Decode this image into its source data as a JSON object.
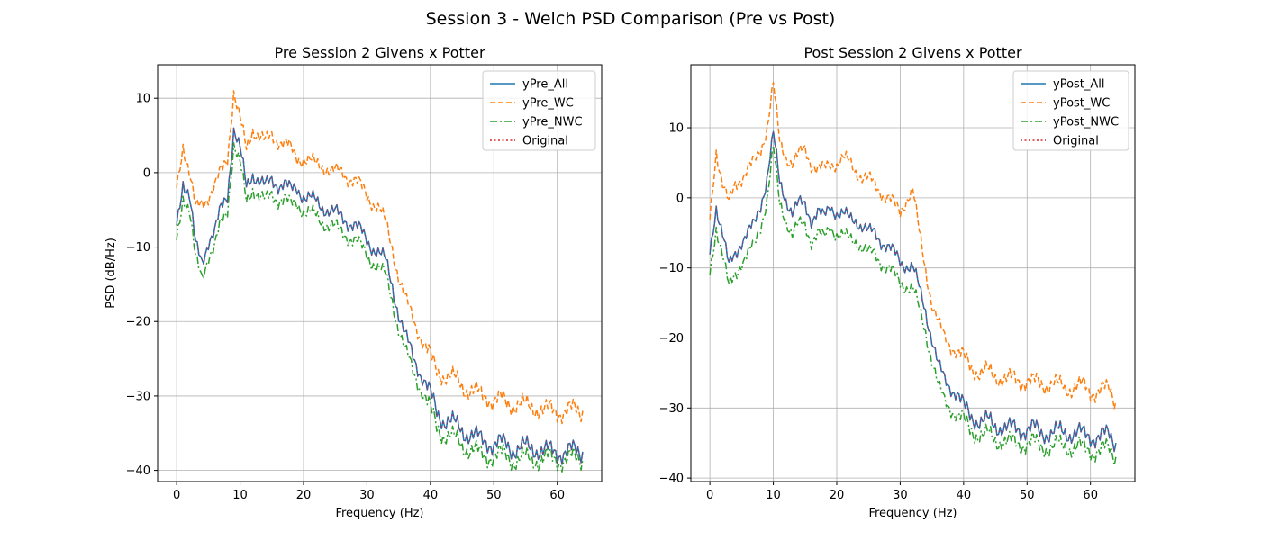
{
  "figure": {
    "suptitle": "Session 3 - Welch PSD Comparison (Pre vs Post)"
  },
  "colors": {
    "all": "#1f77b4",
    "wc": "#ff7f0e",
    "nwc": "#2ca02c",
    "original": "#d62728",
    "overlap": "#7b4a76",
    "grid": "#b0b0b0"
  },
  "chart_data": [
    {
      "type": "line",
      "title": "Pre Session 2 Givens x Potter",
      "xlabel": "Frequency (Hz)",
      "ylabel": "PSD (dB/Hz)",
      "xlim": [
        -3,
        67
      ],
      "ylim": [
        -41.5,
        14.5
      ],
      "xticks": [
        0,
        10,
        20,
        30,
        40,
        50,
        60
      ],
      "yticks": [
        -40,
        -30,
        -20,
        -10,
        0,
        10
      ],
      "grid": true,
      "legend_position": "top-right",
      "x": [
        0,
        1,
        2,
        3,
        4,
        5,
        6,
        7,
        8,
        9,
        10,
        11,
        12,
        13,
        14,
        15,
        16,
        17,
        18,
        19,
        20,
        21,
        22,
        23,
        24,
        25,
        26,
        27,
        28,
        29,
        30,
        31,
        32,
        33,
        34,
        35,
        36,
        37,
        38,
        39,
        40,
        41,
        42,
        43,
        44,
        45,
        46,
        47,
        48,
        49,
        50,
        51,
        52,
        53,
        54,
        55,
        56,
        57,
        58,
        59,
        60,
        61,
        62,
        63,
        64
      ],
      "series": [
        {
          "name": "yPre_All",
          "style": "solid",
          "values": [
            -7,
            -1,
            -3,
            -10,
            -12,
            -9,
            -8,
            -5,
            -3,
            6,
            3,
            -2,
            0,
            -1,
            -2,
            -1,
            -1.5,
            -1.5,
            -2.5,
            -2,
            -3,
            -3.5,
            -4,
            -4.5,
            -5,
            -5.5,
            -6,
            -6.5,
            -7,
            -8,
            -9,
            -10,
            -11,
            -12,
            -15,
            -19,
            -22,
            -24,
            -26,
            -28,
            -30,
            -32,
            -33,
            -33.5,
            -34,
            -34.5,
            -35,
            -35.5,
            -36,
            -36,
            -36.5,
            -36.5,
            -36.5,
            -37,
            -37,
            -37,
            -37,
            -37,
            -37.5,
            -37.5,
            -37.5,
            -37.5,
            -37.5,
            -37.5,
            -37.5
          ]
        },
        {
          "name": "yPre_WC",
          "style": "dashed",
          "values": [
            -2,
            4,
            0,
            -5,
            -4,
            -3,
            -2,
            0,
            2,
            11,
            7,
            3,
            6,
            5,
            4,
            5,
            4.5,
            4,
            3,
            2,
            2,
            1.5,
            1,
            1,
            0.5,
            0,
            0,
            -0.5,
            -1,
            -2,
            -3,
            -4,
            -5,
            -7,
            -10,
            -14,
            -17,
            -19,
            -21,
            -23,
            -25,
            -26.5,
            -27,
            -27.5,
            -28,
            -28.5,
            -29,
            -29.5,
            -30,
            -30,
            -30.5,
            -30.5,
            -31,
            -31,
            -31,
            -31.5,
            -31.5,
            -31.5,
            -32,
            -32,
            -32,
            -32,
            -32,
            -32,
            -32
          ]
        },
        {
          "name": "yPre_NWC",
          "style": "dashdot",
          "values": [
            -9,
            -3,
            -5,
            -12,
            -14,
            -11,
            -10,
            -7,
            -5,
            4,
            1,
            -4,
            -2,
            -3,
            -4,
            -3,
            -3.5,
            -3.5,
            -4.5,
            -4,
            -5,
            -5.5,
            -6,
            -6.5,
            -7,
            -7.5,
            -8,
            -8.5,
            -9,
            -10,
            -11,
            -12,
            -13,
            -14,
            -17,
            -21,
            -24,
            -26,
            -28,
            -30,
            -32,
            -34,
            -35,
            -35.5,
            -36,
            -36.5,
            -37,
            -37.5,
            -38,
            -38,
            -38,
            -38,
            -38,
            -38.5,
            -38.5,
            -38.5,
            -38.5,
            -38.5,
            -38.5,
            -38.5,
            -38.5,
            -38.5,
            -38.5,
            -38.5,
            -38.5
          ]
        },
        {
          "name": "Original",
          "style": "dotted",
          "values": [
            -7,
            -1,
            -3,
            -10,
            -12,
            -9,
            -8,
            -5,
            -3,
            6,
            3,
            -2,
            0,
            -1,
            -2,
            -1,
            -1.5,
            -1.5,
            -2.5,
            -2,
            -3,
            -3.5,
            -4,
            -4.5,
            -5,
            -5.5,
            -6,
            -6.5,
            -7,
            -8,
            -9,
            -10,
            -11,
            -12,
            -15,
            -19,
            -22,
            -24,
            -26,
            -28,
            -30,
            -32,
            -33,
            -33.5,
            -34,
            -34.5,
            -35,
            -35.5,
            -36,
            -36,
            -36.5,
            -36.5,
            -36.5,
            -37,
            -37,
            -37,
            -37,
            -37,
            -37.5,
            -37.5,
            -37.5,
            -37.5,
            -37.5,
            -37.5,
            -37.5
          ]
        }
      ]
    },
    {
      "type": "line",
      "title": "Post Session 2 Givens x Potter",
      "xlabel": "Frequency (Hz)",
      "ylabel": "",
      "xlim": [
        -3,
        67
      ],
      "ylim": [
        -40.5,
        19
      ],
      "xticks": [
        0,
        10,
        20,
        30,
        40,
        50,
        60
      ],
      "yticks": [
        -40,
        -30,
        -20,
        -10,
        0,
        10
      ],
      "grid": true,
      "legend_position": "top-right",
      "x": [
        0,
        1,
        2,
        3,
        4,
        5,
        6,
        7,
        8,
        9,
        10,
        11,
        12,
        13,
        14,
        15,
        16,
        17,
        18,
        19,
        20,
        21,
        22,
        23,
        24,
        25,
        26,
        27,
        28,
        29,
        30,
        31,
        32,
        33,
        34,
        35,
        36,
        37,
        38,
        39,
        40,
        41,
        42,
        43,
        44,
        45,
        46,
        47,
        48,
        49,
        50,
        51,
        52,
        53,
        54,
        55,
        56,
        57,
        58,
        59,
        60,
        61,
        62,
        63,
        64
      ],
      "series": [
        {
          "name": "yPost_All",
          "style": "solid",
          "values": [
            -8,
            -1,
            -5,
            -10,
            -8,
            -6,
            -5,
            -4,
            -1,
            3,
            9,
            2,
            0,
            -2,
            -1,
            -1,
            -3,
            -2,
            -3,
            -1,
            -2,
            -2.5,
            -3,
            -3,
            -4,
            -5,
            -5,
            -6,
            -7,
            -8,
            -9,
            -9.5,
            -10,
            -13,
            -16,
            -20,
            -24,
            -26,
            -27,
            -28,
            -30,
            -31,
            -31.5,
            -32,
            -32,
            -32.5,
            -32.5,
            -33,
            -33,
            -33,
            -33,
            -33,
            -33.5,
            -33.5,
            -33.5,
            -33.5,
            -33.5,
            -33.5,
            -33.5,
            -34,
            -34,
            -34,
            -34,
            -34,
            -35
          ]
        },
        {
          "name": "yPost_WC",
          "style": "dashed",
          "values": [
            -3,
            7,
            2,
            -1,
            2,
            3,
            4,
            5,
            7,
            10,
            16,
            8,
            6,
            5,
            6,
            7,
            5,
            4,
            4,
            5,
            5,
            5.5,
            5,
            4,
            3,
            2.5,
            2,
            1,
            0,
            -1,
            -2,
            0,
            1,
            -5,
            -10,
            -15,
            -18,
            -20,
            -21,
            -22,
            -23,
            -24,
            -24.5,
            -25,
            -25,
            -25.5,
            -25.5,
            -26,
            -26,
            -26,
            -26,
            -26.5,
            -26.5,
            -26.5,
            -26.5,
            -27,
            -27,
            -27,
            -27,
            -27,
            -27.5,
            -27.5,
            -27.5,
            -27.5,
            -29
          ]
        },
        {
          "name": "yPost_NWC",
          "style": "dashdot",
          "values": [
            -11,
            -4,
            -8,
            -13,
            -11,
            -9,
            -8,
            -7,
            -4,
            0,
            7,
            -1,
            -3,
            -5,
            -4,
            -4,
            -6,
            -5,
            -6,
            -4,
            -5,
            -5.5,
            -6,
            -6,
            -7,
            -8,
            -8,
            -9,
            -10,
            -11,
            -12,
            -12.5,
            -13,
            -16,
            -19,
            -23,
            -27,
            -29,
            -30,
            -31,
            -32,
            -33,
            -33.5,
            -34,
            -34,
            -34.5,
            -34.5,
            -35,
            -35,
            -35,
            -35,
            -35,
            -35.5,
            -35.5,
            -35.5,
            -35.5,
            -35.5,
            -35.5,
            -35.5,
            -36,
            -36,
            -36,
            -36,
            -36,
            -37
          ]
        },
        {
          "name": "Original",
          "style": "dotted",
          "values": [
            -8,
            -1,
            -5,
            -10,
            -8,
            -6,
            -5,
            -4,
            -1,
            3,
            9,
            2,
            0,
            -2,
            -1,
            -1,
            -3,
            -2,
            -3,
            -1,
            -2,
            -2.5,
            -3,
            -3,
            -4,
            -5,
            -5,
            -6,
            -7,
            -8,
            -9,
            -9.5,
            -10,
            -13,
            -16,
            -20,
            -24,
            -26,
            -27,
            -28,
            -30,
            -31,
            -31.5,
            -32,
            -32,
            -32.5,
            -32.5,
            -33,
            -33,
            -33,
            -33,
            -33,
            -33.5,
            -33.5,
            -33.5,
            -33.5,
            -33.5,
            -33.5,
            -33.5,
            -34,
            -34,
            -34,
            -34,
            -34,
            -35
          ]
        }
      ]
    }
  ]
}
